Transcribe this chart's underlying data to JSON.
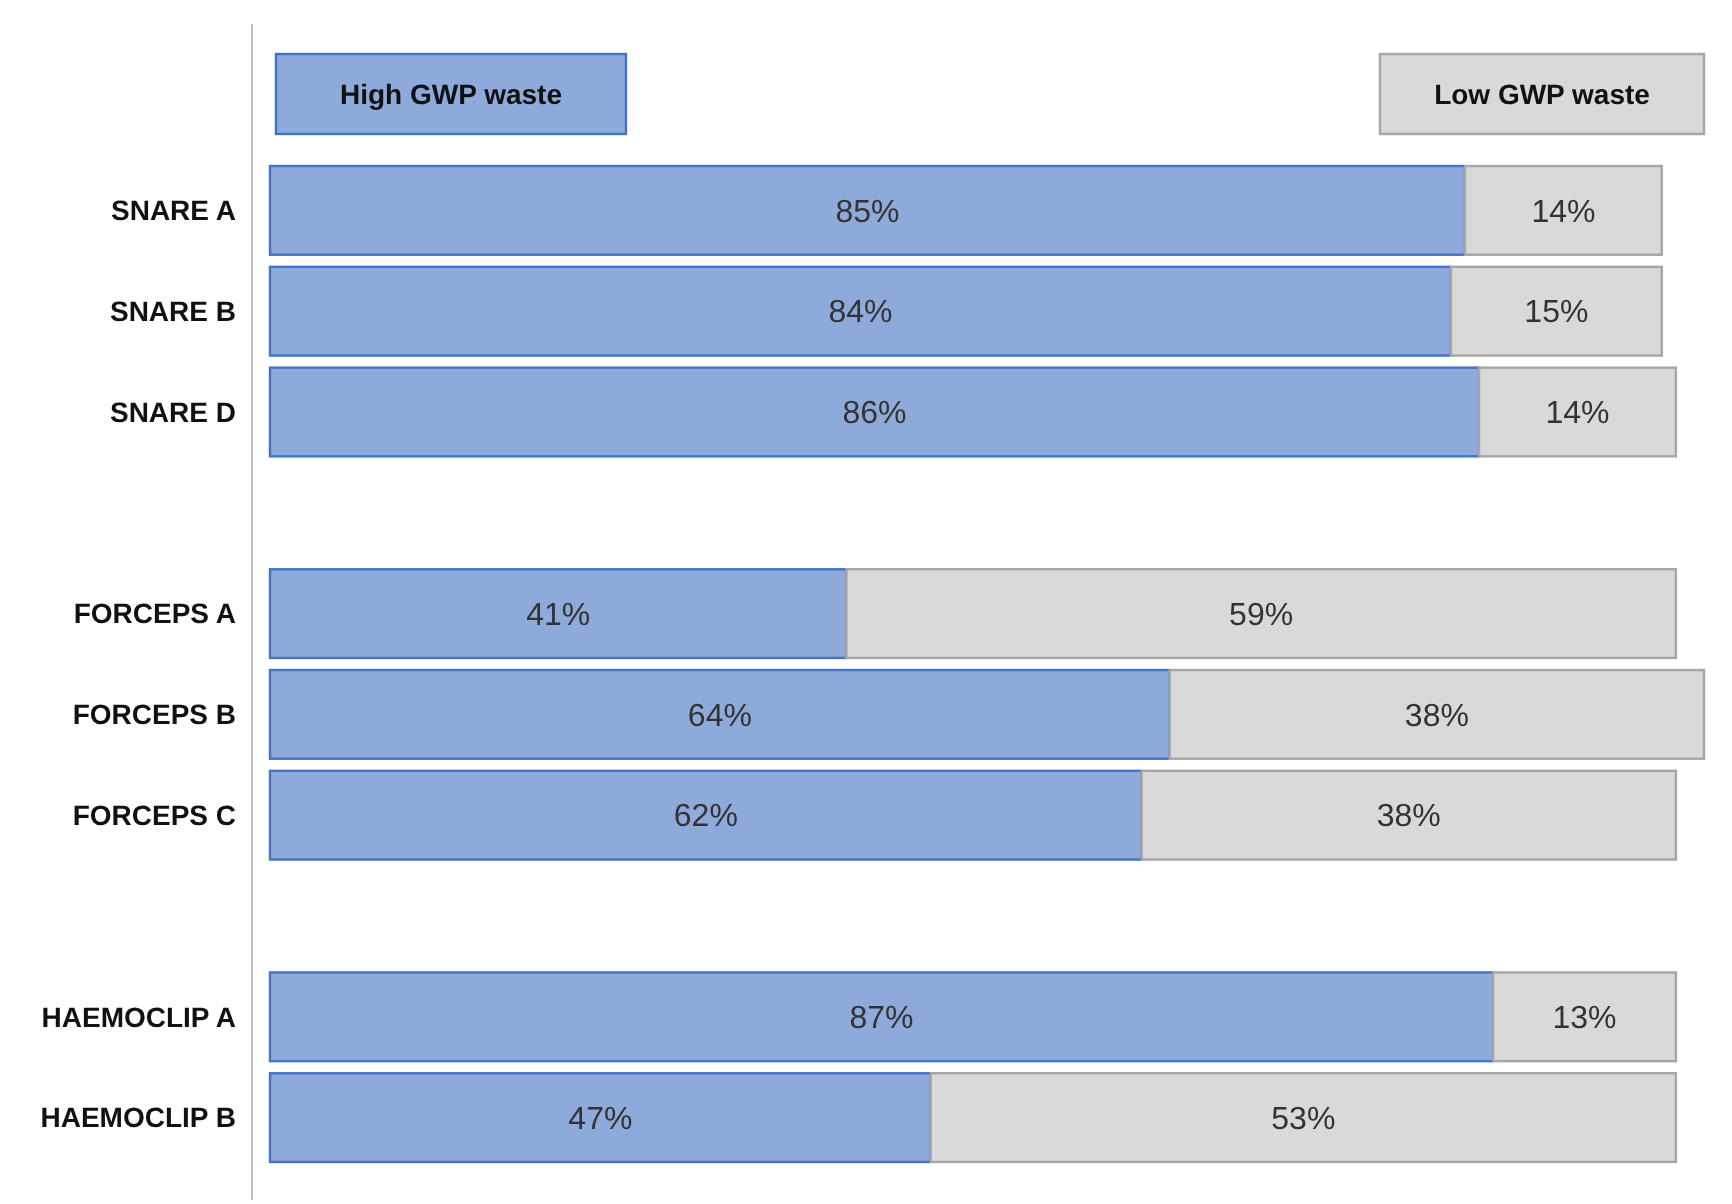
{
  "chart_data": {
    "type": "bar",
    "orientation": "horizontal",
    "stacked": true,
    "categories": [
      "SNARE A",
      "SNARE B",
      "SNARE D",
      null,
      "FORCEPS A",
      "FORCEPS B",
      "FORCEPS C",
      null,
      "HAEMOCLIP A",
      "HAEMOCLIP B"
    ],
    "series": [
      {
        "name": "High GWP waste",
        "color": "#8eaadb",
        "values": [
          85,
          84,
          86,
          null,
          41,
          64,
          62,
          null,
          87,
          47
        ],
        "value_labels": [
          "85%",
          "84%",
          "86%",
          null,
          "41%",
          "64%",
          "62%",
          null,
          "87%",
          "47%"
        ]
      },
      {
        "name": "Low GWP waste",
        "color": "#d9d9d9",
        "values": [
          14,
          15,
          14,
          null,
          59,
          38,
          38,
          null,
          13,
          53
        ],
        "value_labels": [
          "14%",
          "15%",
          "14%",
          null,
          "59%",
          "38%",
          "38%",
          null,
          "13%",
          "53%"
        ]
      }
    ],
    "legend": "top",
    "tick_labels": "y"
  }
}
